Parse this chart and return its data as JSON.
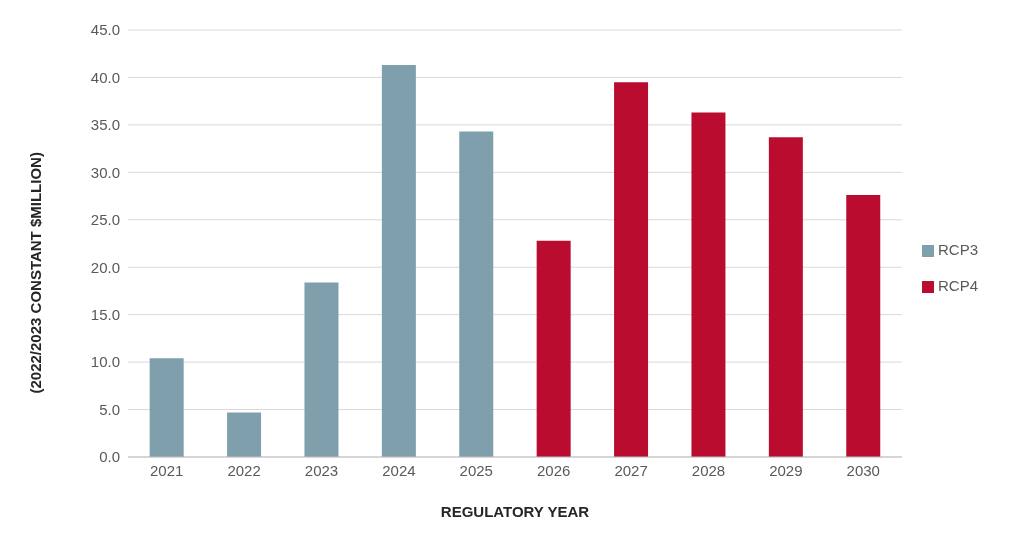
{
  "chart_data": {
    "type": "bar",
    "xlabel": "REGULATORY YEAR",
    "ylabel": "(2022/2023 CONSTANT $MILLION)",
    "categories": [
      "2021",
      "2022",
      "2023",
      "2024",
      "2025",
      "2026",
      "2027",
      "2028",
      "2029",
      "2030"
    ],
    "series": [
      {
        "name": "RCP3",
        "color": "#7f9fad",
        "values": [
          10.4,
          4.7,
          18.4,
          41.3,
          34.3,
          null,
          null,
          null,
          null,
          null
        ]
      },
      {
        "name": "RCP4",
        "color": "#ba0c2f",
        "values": [
          null,
          null,
          null,
          null,
          null,
          22.8,
          39.5,
          36.3,
          33.7,
          27.6
        ]
      }
    ],
    "stacked": true,
    "ylim": [
      0,
      45
    ],
    "yticks": [
      {
        "value": 0,
        "label": "0.0"
      },
      {
        "value": 5,
        "label": "5.0"
      },
      {
        "value": 10,
        "label": "10.0"
      },
      {
        "value": 15,
        "label": "15.0"
      },
      {
        "value": 20,
        "label": "20.0"
      },
      {
        "value": 25,
        "label": "25.0"
      },
      {
        "value": 30,
        "label": "30.0"
      },
      {
        "value": 35,
        "label": "35.0"
      },
      {
        "value": 40,
        "label": "40.0"
      },
      {
        "value": 45,
        "label": "45.0"
      }
    ],
    "grid": "y",
    "legend": "right"
  }
}
